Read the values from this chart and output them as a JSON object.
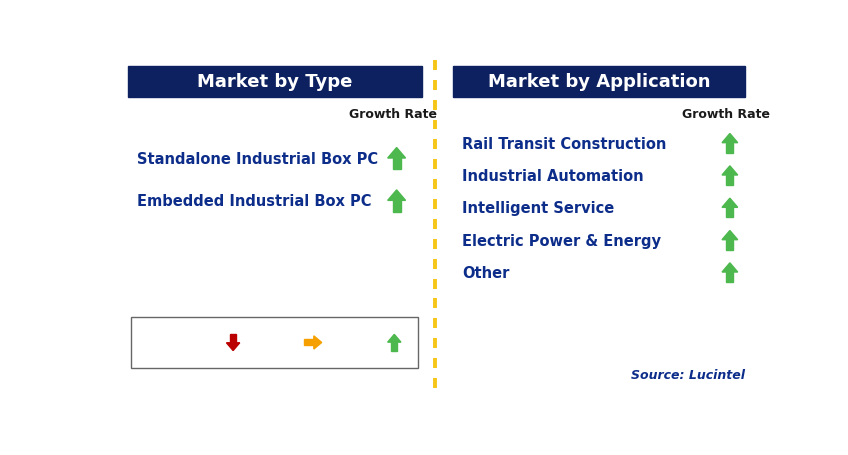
{
  "title_left": "Market by Type",
  "title_right": "Market by Application",
  "header_color": "#0d2060",
  "header_text_color": "#ffffff",
  "left_items": [
    "Standalone Industrial Box PC",
    "Embedded Industrial Box PC"
  ],
  "right_items": [
    "Rail Transit Construction",
    "Industrial Automation",
    "Intelligent Service",
    "Electric Power & Energy",
    "Other"
  ],
  "item_color": "#0d2d8a",
  "growth_rate_label": "Growth Rate",
  "growth_rate_color": "#1a1a1a",
  "arrow_up_color": "#4db84e",
  "dashed_line_color": "#f5c518",
  "legend_arrow_down_color": "#bb0000",
  "legend_arrow_right_color": "#f5a000",
  "legend_arrow_up_color": "#4db84e",
  "source_text": "Source: Lucintel",
  "source_color": "#0d2d8a",
  "bg_color": "#ffffff"
}
